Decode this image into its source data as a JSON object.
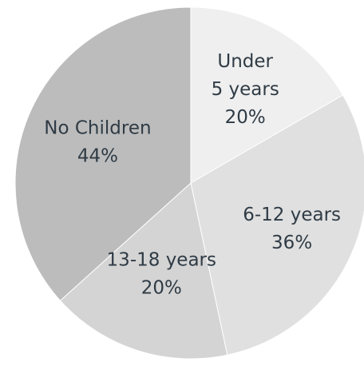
{
  "chart_data": {
    "type": "pie",
    "title": "",
    "start_angle_deg": 0,
    "direction": "clockwise",
    "slices": [
      {
        "label_lines": [
          "Under",
          "5 years"
        ],
        "value": 20,
        "value_label": "20%",
        "color": "#efefef"
      },
      {
        "label_lines": [
          "6-12 years"
        ],
        "value": 36,
        "value_label": "36%",
        "color": "#e0e0e0"
      },
      {
        "label_lines": [
          "13-18 years"
        ],
        "value": 20,
        "value_label": "20%",
        "color": "#d4d4d4"
      },
      {
        "label_lines": [
          "No Children"
        ],
        "value": 44,
        "value_label": "44%",
        "color": "#bcbcbc"
      }
    ]
  }
}
